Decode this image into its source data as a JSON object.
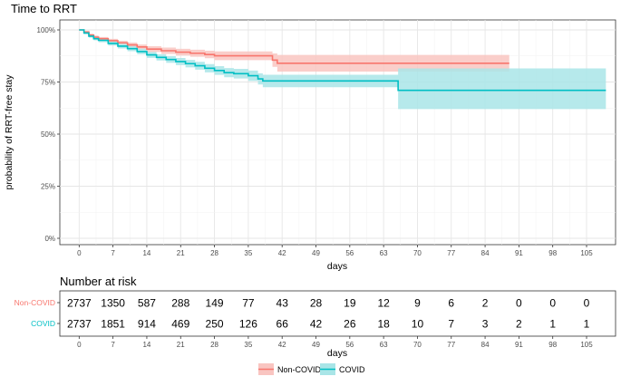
{
  "chart_data": [
    {
      "type": "line",
      "subtype": "kaplan-meier",
      "title": "Time to RRT",
      "xlabel": "days",
      "ylabel": "probability of RRT-free stay",
      "xlim": [
        -4,
        111
      ],
      "ylim": [
        0,
        1
      ],
      "x_ticks": [
        0,
        7,
        14,
        21,
        28,
        35,
        42,
        49,
        56,
        63,
        70,
        77,
        84,
        91,
        98,
        105
      ],
      "y_ticks": [
        {
          "value": 0,
          "label": "0%"
        },
        {
          "value": 0.25,
          "label": "25%"
        },
        {
          "value": 0.5,
          "label": "50%"
        },
        {
          "value": 0.75,
          "label": "75%"
        },
        {
          "value": 1,
          "label": "100%"
        }
      ],
      "grid": true,
      "series": [
        {
          "name": "Non-COVID",
          "color": "#F8766D",
          "band_color": "#F9C5C1",
          "steps": [
            [
              0,
              1.0
            ],
            [
              1,
              0.99
            ],
            [
              2,
              0.975
            ],
            [
              3,
              0.965
            ],
            [
              4,
              0.958
            ],
            [
              6,
              0.948
            ],
            [
              8,
              0.938
            ],
            [
              10,
              0.928
            ],
            [
              12,
              0.918
            ],
            [
              14,
              0.908
            ],
            [
              17,
              0.9
            ],
            [
              20,
              0.893
            ],
            [
              23,
              0.888
            ],
            [
              26,
              0.882
            ],
            [
              28,
              0.876
            ],
            [
              40,
              0.855
            ],
            [
              41,
              0.84
            ],
            [
              89,
              0.84
            ]
          ],
          "upper": [
            [
              0,
              1.0
            ],
            [
              1,
              0.995
            ],
            [
              2,
              0.982
            ],
            [
              3,
              0.973
            ],
            [
              4,
              0.966
            ],
            [
              6,
              0.957
            ],
            [
              8,
              0.948
            ],
            [
              10,
              0.939
            ],
            [
              12,
              0.93
            ],
            [
              14,
              0.922
            ],
            [
              17,
              0.915
            ],
            [
              20,
              0.909
            ],
            [
              23,
              0.905
            ],
            [
              26,
              0.9
            ],
            [
              28,
              0.897
            ],
            [
              40,
              0.887
            ],
            [
              41,
              0.88
            ],
            [
              89,
              0.88
            ]
          ],
          "lower": [
            [
              0,
              1.0
            ],
            [
              1,
              0.985
            ],
            [
              2,
              0.968
            ],
            [
              3,
              0.957
            ],
            [
              4,
              0.95
            ],
            [
              6,
              0.939
            ],
            [
              8,
              0.928
            ],
            [
              10,
              0.917
            ],
            [
              12,
              0.906
            ],
            [
              14,
              0.894
            ],
            [
              17,
              0.885
            ],
            [
              20,
              0.877
            ],
            [
              23,
              0.871
            ],
            [
              26,
              0.864
            ],
            [
              28,
              0.855
            ],
            [
              40,
              0.823
            ],
            [
              41,
              0.8
            ],
            [
              89,
              0.8
            ]
          ]
        },
        {
          "name": "COVID",
          "color": "#00BFC4",
          "band_color": "#A9E5E7",
          "steps": [
            [
              0,
              1.0
            ],
            [
              1,
              0.985
            ],
            [
              2,
              0.97
            ],
            [
              3,
              0.958
            ],
            [
              4,
              0.95
            ],
            [
              6,
              0.935
            ],
            [
              8,
              0.922
            ],
            [
              10,
              0.91
            ],
            [
              12,
              0.896
            ],
            [
              14,
              0.88
            ],
            [
              16,
              0.868
            ],
            [
              18,
              0.858
            ],
            [
              20,
              0.848
            ],
            [
              22,
              0.838
            ],
            [
              24,
              0.828
            ],
            [
              26,
              0.816
            ],
            [
              28,
              0.805
            ],
            [
              30,
              0.795
            ],
            [
              32,
              0.79
            ],
            [
              35,
              0.78
            ],
            [
              37,
              0.765
            ],
            [
              38,
              0.755
            ],
            [
              66,
              0.71
            ],
            [
              109,
              0.71
            ]
          ],
          "upper": [
            [
              0,
              1.0
            ],
            [
              1,
              0.99
            ],
            [
              2,
              0.977
            ],
            [
              3,
              0.966
            ],
            [
              4,
              0.959
            ],
            [
              6,
              0.945
            ],
            [
              8,
              0.933
            ],
            [
              10,
              0.922
            ],
            [
              12,
              0.909
            ],
            [
              14,
              0.894
            ],
            [
              16,
              0.883
            ],
            [
              18,
              0.874
            ],
            [
              20,
              0.865
            ],
            [
              22,
              0.856
            ],
            [
              24,
              0.847
            ],
            [
              26,
              0.836
            ],
            [
              28,
              0.826
            ],
            [
              30,
              0.817
            ],
            [
              32,
              0.813
            ],
            [
              35,
              0.805
            ],
            [
              37,
              0.792
            ],
            [
              38,
              0.785
            ],
            [
              66,
              0.815
            ],
            [
              109,
              0.815
            ]
          ],
          "lower": [
            [
              0,
              1.0
            ],
            [
              1,
              0.98
            ],
            [
              2,
              0.963
            ],
            [
              3,
              0.95
            ],
            [
              4,
              0.941
            ],
            [
              6,
              0.925
            ],
            [
              8,
              0.911
            ],
            [
              10,
              0.898
            ],
            [
              12,
              0.883
            ],
            [
              14,
              0.866
            ],
            [
              16,
              0.853
            ],
            [
              18,
              0.842
            ],
            [
              20,
              0.831
            ],
            [
              22,
              0.82
            ],
            [
              24,
              0.809
            ],
            [
              26,
              0.796
            ],
            [
              28,
              0.784
            ],
            [
              30,
              0.773
            ],
            [
              32,
              0.767
            ],
            [
              35,
              0.755
            ],
            [
              37,
              0.738
            ],
            [
              38,
              0.725
            ],
            [
              66,
              0.62
            ],
            [
              109,
              0.62
            ]
          ]
        }
      ]
    },
    {
      "type": "table",
      "title": "Number at risk",
      "xlabel": "days",
      "x_ticks": [
        0,
        7,
        14,
        21,
        28,
        35,
        42,
        49,
        56,
        63,
        70,
        77,
        84,
        91,
        98,
        105
      ],
      "rows": [
        {
          "name": "Non-COVID",
          "color": "#F8766D",
          "values": [
            2737,
            1350,
            587,
            288,
            149,
            77,
            43,
            28,
            19,
            12,
            9,
            6,
            2,
            0,
            0,
            0
          ]
        },
        {
          "name": "COVID",
          "color": "#00BFC4",
          "values": [
            2737,
            1851,
            914,
            469,
            250,
            126,
            66,
            42,
            26,
            18,
            10,
            7,
            3,
            2,
            1,
            1
          ]
        }
      ]
    }
  ],
  "legend": {
    "position": "bottom",
    "items": [
      {
        "label": "Non-COVID",
        "color": "#F8766D",
        "fill": "#F9C5C1"
      },
      {
        "label": "COVID",
        "color": "#00BFC4",
        "fill": "#A9E5E7"
      }
    ]
  }
}
